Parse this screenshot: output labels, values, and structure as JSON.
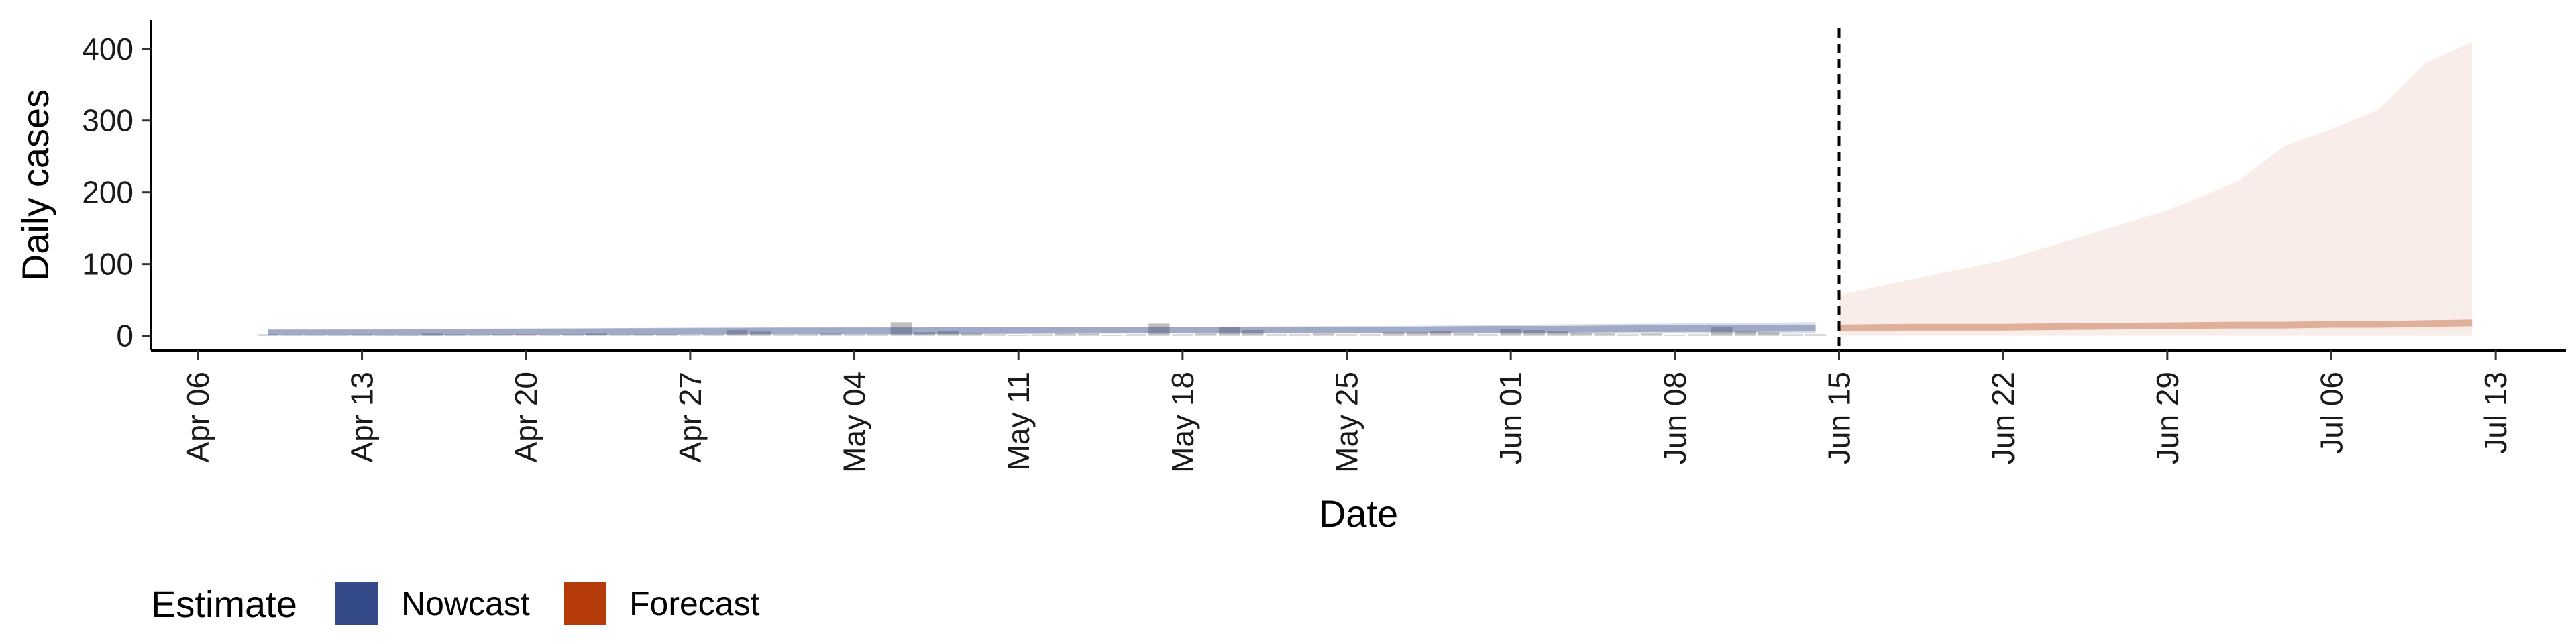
{
  "chart_data": {
    "type": "area",
    "xlabel": "Date",
    "ylabel": "Daily cases",
    "x_ticks": [
      "Apr 06",
      "Apr 13",
      "Apr 20",
      "Apr 27",
      "May 04",
      "May 11",
      "May 18",
      "May 25",
      "Jun 01",
      "Jun 08",
      "Jun 15",
      "Jun 22",
      "Jun 29",
      "Jul 06",
      "Jul 13"
    ],
    "y_ticks": [
      0,
      100,
      200,
      300,
      400
    ],
    "xlim": [
      "2020-04-04",
      "2020-07-16"
    ],
    "ylim": [
      -20,
      440
    ],
    "reference_line": {
      "date": "2020-06-15",
      "style": "dashed"
    },
    "legend": {
      "title": "Estimate",
      "position": "bottom-left",
      "items": [
        {
          "label": "Nowcast",
          "color": "#354a88"
        },
        {
          "label": "Forecast",
          "color": "#b53c0a"
        }
      ]
    },
    "observed_cases": {
      "dates": [
        "2020-04-09",
        "2020-04-10",
        "2020-04-11",
        "2020-04-12",
        "2020-04-13",
        "2020-04-14",
        "2020-04-15",
        "2020-04-16",
        "2020-04-17",
        "2020-04-18",
        "2020-04-19",
        "2020-04-20",
        "2020-04-21",
        "2020-04-22",
        "2020-04-23",
        "2020-04-24",
        "2020-04-25",
        "2020-04-26",
        "2020-04-27",
        "2020-04-28",
        "2020-04-29",
        "2020-04-30",
        "2020-05-01",
        "2020-05-02",
        "2020-05-03",
        "2020-05-04",
        "2020-05-05",
        "2020-05-06",
        "2020-05-07",
        "2020-05-08",
        "2020-05-09",
        "2020-05-10",
        "2020-05-11",
        "2020-05-12",
        "2020-05-13",
        "2020-05-14",
        "2020-05-15",
        "2020-05-16",
        "2020-05-17",
        "2020-05-18",
        "2020-05-19",
        "2020-05-20",
        "2020-05-21",
        "2020-05-22",
        "2020-05-23",
        "2020-05-24",
        "2020-05-25",
        "2020-05-26",
        "2020-05-27",
        "2020-05-28",
        "2020-05-29",
        "2020-05-30",
        "2020-05-31",
        "2020-06-01",
        "2020-06-02",
        "2020-06-03",
        "2020-06-04",
        "2020-06-05",
        "2020-06-06",
        "2020-06-07",
        "2020-06-08",
        "2020-06-09",
        "2020-06-10",
        "2020-06-11",
        "2020-06-12",
        "2020-06-13",
        "2020-06-14"
      ],
      "values": [
        2,
        1,
        1,
        1,
        2,
        1,
        1,
        3,
        2,
        1,
        2,
        2,
        1,
        2,
        3,
        1,
        2,
        2,
        1,
        2,
        8,
        6,
        2,
        2,
        3,
        2,
        2,
        19,
        5,
        7,
        3,
        2,
        1,
        2,
        3,
        3,
        1,
        2,
        17,
        2,
        3,
        12,
        8,
        2,
        2,
        3,
        2,
        2,
        5,
        5,
        7,
        3,
        2,
        9,
        8,
        6,
        4,
        3,
        2,
        3,
        1,
        2,
        12,
        6,
        5,
        2,
        2
      ]
    },
    "series": [
      {
        "name": "Nowcast",
        "dates": [
          "2020-04-09",
          "2020-04-16",
          "2020-04-23",
          "2020-04-30",
          "2020-05-07",
          "2020-05-14",
          "2020-05-21",
          "2020-05-28",
          "2020-05-31",
          "2020-06-03",
          "2020-06-07",
          "2020-06-11",
          "2020-06-14"
        ],
        "median": [
          5,
          5,
          6,
          7,
          7,
          8,
          8,
          8,
          9,
          9,
          10,
          10,
          11
        ],
        "lower": [
          1,
          0,
          1,
          2,
          2,
          3,
          3,
          3,
          3,
          3,
          3,
          3,
          3
        ],
        "upper": [
          8,
          9,
          10,
          11,
          12,
          12,
          13,
          14,
          15,
          16,
          17,
          18,
          19
        ]
      },
      {
        "name": "Forecast",
        "dates": [
          "2020-06-15",
          "2020-06-18",
          "2020-06-22",
          "2020-06-25",
          "2020-06-29",
          "2020-07-02",
          "2020-07-04",
          "2020-07-06",
          "2020-07-08",
          "2020-07-10",
          "2020-07-12"
        ],
        "median": [
          11,
          12,
          12,
          13,
          14,
          15,
          15,
          16,
          16,
          17,
          18
        ],
        "lower": [
          0,
          0,
          0,
          0,
          0,
          0,
          0,
          0,
          0,
          0,
          0
        ],
        "upper": [
          57,
          78,
          105,
          135,
          175,
          215,
          265,
          288,
          315,
          380,
          410
        ]
      }
    ]
  }
}
